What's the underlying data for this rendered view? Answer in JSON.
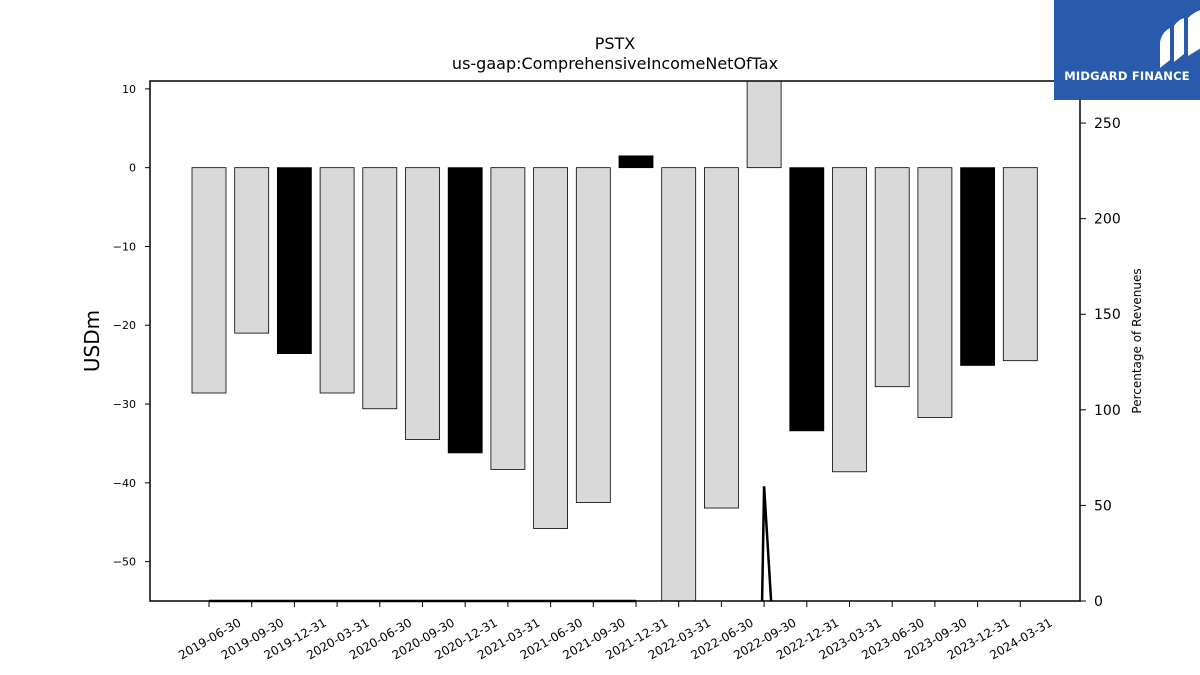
{
  "logo": {
    "text": "MIDGARD FINANCE",
    "bg_color": "#2a5aab"
  },
  "chart_data": {
    "type": "bar",
    "title": "PSTX",
    "subtitle": "us-gaap:ComprehensiveIncomeNetOfTax",
    "ylabel": "USDm",
    "ylabel_right": "Percentage of Revenues",
    "ylim": [
      -55,
      11
    ],
    "ylim_right": [
      0,
      272
    ],
    "yticks": [
      10,
      0,
      -10,
      -20,
      -30,
      -40,
      -50
    ],
    "yticks_right": [
      250,
      200,
      150,
      100,
      50,
      0
    ],
    "categories": [
      "2019-06-30",
      "2019-09-30",
      "2019-12-31",
      "2020-03-31",
      "2020-06-30",
      "2020-09-30",
      "2020-12-31",
      "2021-03-31",
      "2021-06-30",
      "2021-09-30",
      "2021-12-31",
      "2022-03-31",
      "2022-06-30",
      "2022-09-30",
      "2022-12-31",
      "2023-03-31",
      "2023-06-30",
      "2023-09-30",
      "2023-12-31",
      "2024-03-31"
    ],
    "values": [
      -28.6,
      -21.0,
      -23.6,
      -28.6,
      -30.6,
      -34.5,
      -36.2,
      -38.3,
      -45.8,
      -42.5,
      1.5,
      -55.3,
      -43.2,
      11.0,
      -33.4,
      -38.6,
      -27.8,
      -31.7,
      -25.1,
      -24.5
    ],
    "bar_colors": [
      "#d9d9d9",
      "#d9d9d9",
      "#000000",
      "#d9d9d9",
      "#d9d9d9",
      "#d9d9d9",
      "#000000",
      "#d9d9d9",
      "#d9d9d9",
      "#d9d9d9",
      "#000000",
      "#d9d9d9",
      "#d9d9d9",
      "#d9d9d9",
      "#000000",
      "#d9d9d9",
      "#d9d9d9",
      "#d9d9d9",
      "#000000",
      "#d9d9d9"
    ],
    "percentage_series": [
      0,
      0,
      0,
      0,
      0,
      0,
      0,
      0,
      0,
      0,
      0,
      null,
      null,
      60,
      null,
      null,
      null,
      null,
      null,
      null
    ]
  }
}
